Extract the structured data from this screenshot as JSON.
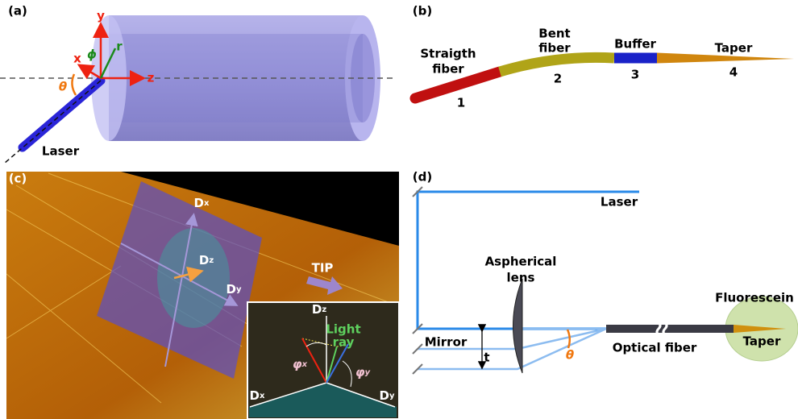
{
  "panel_a": {
    "label": "(a)",
    "axis_y": "y",
    "axis_x": "x",
    "axis_z": "z",
    "axis_r": "r",
    "phi": "ϕ",
    "theta": "θ",
    "laser": "Laser"
  },
  "panel_b": {
    "label": "(b)",
    "segments": [
      {
        "name_lines": [
          "Straigth",
          "fiber"
        ],
        "number": 1
      },
      {
        "name_lines": [
          "Bent",
          "fiber"
        ],
        "number": 2
      },
      {
        "name_lines": [
          "Buffer"
        ],
        "number": 3
      },
      {
        "name_lines": [
          "Taper"
        ],
        "number": 4
      }
    ]
  },
  "panel_c": {
    "label": "(c)",
    "dx": {
      "main": "D",
      "sub": "x"
    },
    "dz": {
      "main": "D",
      "sub": "z"
    },
    "dy": {
      "main": "D",
      "sub": "y"
    },
    "tip": "TIP",
    "inset": {
      "dz": {
        "main": "D",
        "sub": "z"
      },
      "light_ray": [
        "Light",
        "ray"
      ],
      "phi_x": {
        "main": "φ",
        "sub": "x"
      },
      "phi_y": {
        "main": "φ",
        "sub": "y"
      },
      "dx": {
        "main": "D",
        "sub": "x"
      },
      "dy": {
        "main": "D",
        "sub": "y"
      }
    }
  },
  "panel_d": {
    "label": "(d)",
    "laser": "Laser",
    "lens": [
      "Aspherical",
      "lens"
    ],
    "mirror": "Mirror",
    "t": "t",
    "theta": "θ",
    "fiber": "Optical fiber",
    "fluorescein": "Fluorescein",
    "taper": "Taper"
  }
}
